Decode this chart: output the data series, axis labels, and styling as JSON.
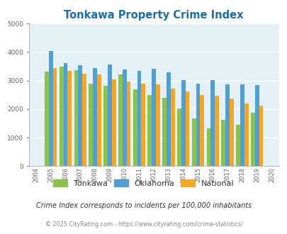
{
  "title": "Tonkawa Property Crime Index",
  "plot_years": [
    2005,
    2006,
    2007,
    2008,
    2009,
    2010,
    2011,
    2012,
    2013,
    2014,
    2015,
    2016,
    2017,
    2018,
    2019
  ],
  "tonkawa": [
    3300,
    3480,
    3350,
    2900,
    2820,
    3200,
    2700,
    2480,
    2390,
    2020,
    1680,
    1330,
    1620,
    1460,
    1880
  ],
  "oklahoma": [
    4040,
    3600,
    3540,
    3440,
    3570,
    3380,
    3340,
    3400,
    3290,
    3010,
    2900,
    3010,
    2860,
    2870,
    2840
  ],
  "national": [
    3440,
    3330,
    3230,
    3200,
    3040,
    2960,
    2900,
    2870,
    2720,
    2610,
    2490,
    2460,
    2360,
    2200,
    2130
  ],
  "tonkawa_color": "#8bc34a",
  "oklahoma_color": "#4f9fd4",
  "national_color": "#f5a623",
  "bg_color": "#e3f0f5",
  "ylim": [
    0,
    5000
  ],
  "yticks": [
    0,
    1000,
    2000,
    3000,
    4000,
    5000
  ],
  "all_xtick_years": [
    2004,
    2005,
    2006,
    2007,
    2008,
    2009,
    2010,
    2011,
    2012,
    2013,
    2014,
    2015,
    2016,
    2017,
    2018,
    2019,
    2020
  ],
  "legend_labels": [
    "Tonkawa",
    "Oklahoma",
    "National"
  ],
  "note": "Crime Index corresponds to incidents per 100,000 inhabitants",
  "copyright": "© 2025 CityRating.com - https://www.cityrating.com/crime-statistics/"
}
